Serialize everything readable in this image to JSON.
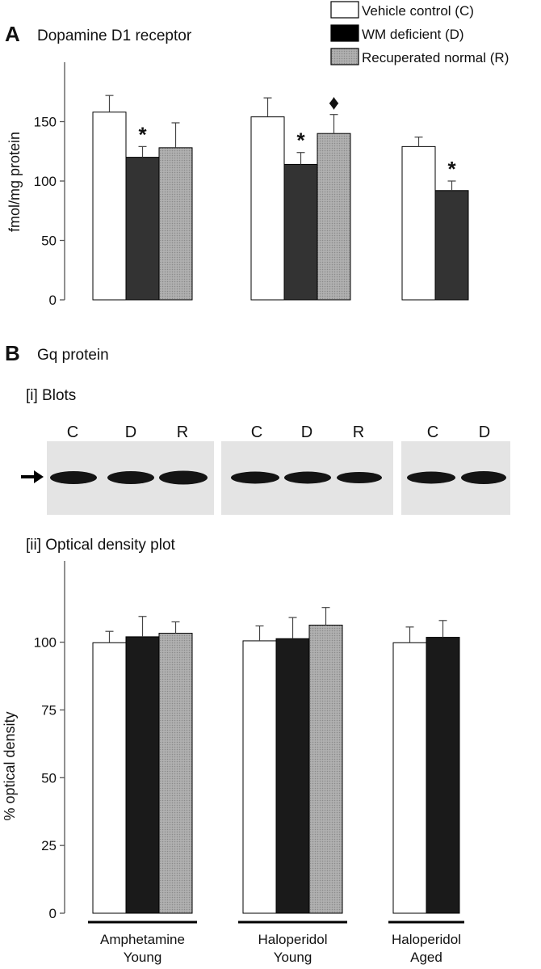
{
  "colors": {
    "control": "#ffffff",
    "deficient": "#1a1a1a",
    "deficient_a": "#333333",
    "recuperated": "#a9a9a9",
    "blot_bg": "#e4e4e4"
  },
  "legend": {
    "items": [
      "Vehicle control (C)",
      "WM deficient (D)",
      "Recuperated normal (R)"
    ]
  },
  "panel_a": {
    "letter": "A",
    "title": "Dopamine D1 receptor"
  },
  "panel_b": {
    "letter": "B",
    "title": "Gq protein",
    "blots_label": "[i] Blots",
    "plot_label": "[ii] Optical density plot",
    "lanes": [
      [
        "C",
        "D",
        "R"
      ],
      [
        "C",
        "D",
        "R"
      ],
      [
        "C",
        "D"
      ]
    ]
  },
  "chart_data": [
    {
      "type": "bar",
      "title": "Dopamine D1 receptor",
      "ylabel": "fmol/mg protein",
      "ylim": [
        0,
        200
      ],
      "yticks": [
        "0",
        "50",
        "100",
        "150"
      ],
      "groups": [
        {
          "bars": [
            {
              "series": "C",
              "value": 158,
              "error": 14
            },
            {
              "series": "D",
              "value": 120,
              "error": 9,
              "mark": "*"
            },
            {
              "series": "R",
              "value": 128,
              "error": 21
            }
          ]
        },
        {
          "bars": [
            {
              "series": "C",
              "value": 154,
              "error": 16
            },
            {
              "series": "D",
              "value": 114,
              "error": 10,
              "mark": "*"
            },
            {
              "series": "R",
              "value": 140,
              "error": 16,
              "mark": "♦"
            }
          ]
        },
        {
          "bars": [
            {
              "series": "C",
              "value": 129,
              "error": 8
            },
            {
              "series": "D",
              "value": 92,
              "error": 8,
              "mark": "*"
            }
          ]
        }
      ],
      "legend": [
        "Vehicle control (C)",
        "WM deficient (D)",
        "Recuperated normal (R)"
      ]
    },
    {
      "type": "bar",
      "ylabel": "% optical density",
      "ylim": [
        0,
        130
      ],
      "yticks": [
        "0",
        "25",
        "50",
        "75",
        "100"
      ],
      "groups": [
        {
          "label": [
            "Amphetamine",
            "Young"
          ],
          "bars": [
            {
              "series": "C",
              "value": 99.8,
              "error": 4.2
            },
            {
              "series": "D",
              "value": 102,
              "error": 7.5
            },
            {
              "series": "R",
              "value": 103.3,
              "error": 4.2
            }
          ]
        },
        {
          "label": [
            "Haloperidol",
            "Young"
          ],
          "bars": [
            {
              "series": "C",
              "value": 100.5,
              "error": 5.5
            },
            {
              "series": "D",
              "value": 101.3,
              "error": 7.8
            },
            {
              "series": "R",
              "value": 106.3,
              "error": 6.5
            }
          ]
        },
        {
          "label": [
            "Haloperidol",
            "Aged"
          ],
          "bars": [
            {
              "series": "C",
              "value": 99.8,
              "error": 5.8
            },
            {
              "series": "D",
              "value": 101.8,
              "error": 6.2
            }
          ]
        }
      ]
    }
  ]
}
